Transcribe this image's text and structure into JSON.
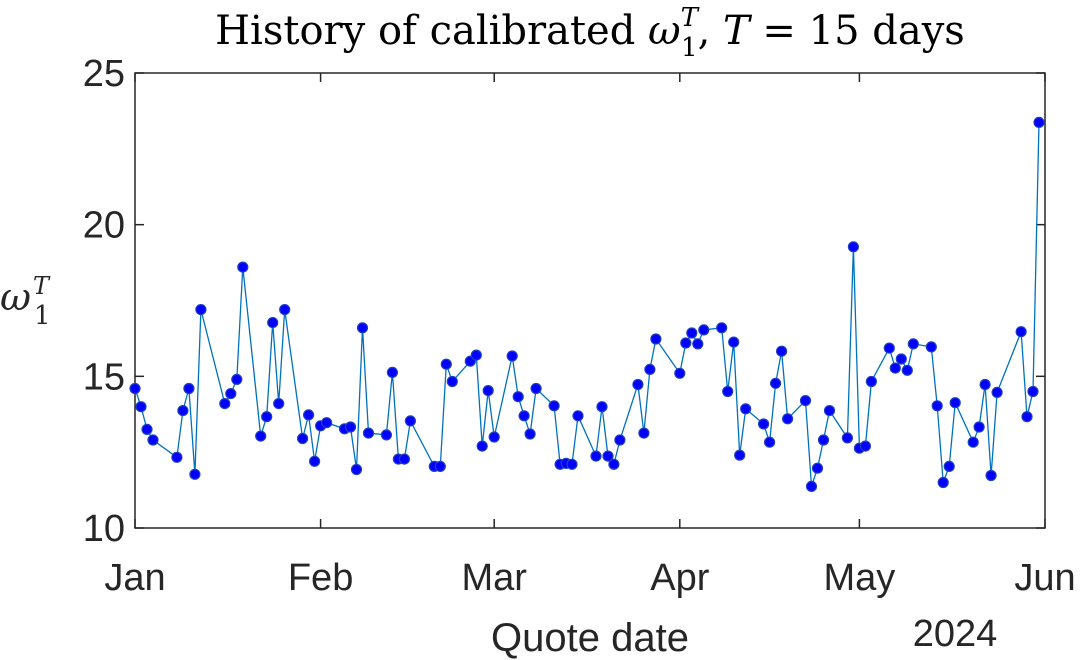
{
  "chart_data": {
    "type": "line",
    "title": "History of calibrated ω₁ᵀ, T = 15 days",
    "title_parts": {
      "prefix": "History of calibrated ",
      "symbol": "ω",
      "symbol_sub": "1",
      "symbol_sup": "T",
      "middle": ", ",
      "var": "T",
      "suffix": " = 15 days"
    },
    "xlabel": "Quote date",
    "ylabel": {
      "symbol": "ω",
      "sub": "1",
      "sup": "T"
    },
    "year_label": "2024",
    "xlim": [
      "2024-01-01",
      "2024-06-01"
    ],
    "ylim": [
      10,
      25
    ],
    "x_ticks": [
      {
        "date": "2024-01-01",
        "label": "Jan"
      },
      {
        "date": "2024-02-01",
        "label": "Feb"
      },
      {
        "date": "2024-03-01",
        "label": "Mar"
      },
      {
        "date": "2024-04-01",
        "label": "Apr"
      },
      {
        "date": "2024-05-01",
        "label": "May"
      },
      {
        "date": "2024-06-01",
        "label": "Jun"
      }
    ],
    "y_ticks": [
      10,
      15,
      20,
      25
    ],
    "grid": false,
    "colors": {
      "line": "#0072BD",
      "marker_fill": "#0000FF",
      "marker_edge": "#1F3FBF"
    },
    "series": [
      {
        "points": [
          [
            "2024-01-01",
            14.6
          ],
          [
            "2024-01-02",
            14.0
          ],
          [
            "2024-01-03",
            13.25
          ],
          [
            "2024-01-04",
            12.9
          ],
          [
            "2024-01-08",
            12.33
          ],
          [
            "2024-01-09",
            13.87
          ],
          [
            "2024-01-10",
            14.6
          ],
          [
            "2024-01-11",
            11.77
          ],
          [
            "2024-01-12",
            17.2
          ],
          [
            "2024-01-16",
            14.1
          ],
          [
            "2024-01-17",
            14.43
          ],
          [
            "2024-01-18",
            14.9
          ],
          [
            "2024-01-19",
            18.6
          ],
          [
            "2024-01-22",
            13.03
          ],
          [
            "2024-01-23",
            13.67
          ],
          [
            "2024-01-24",
            16.77
          ],
          [
            "2024-01-25",
            14.1
          ],
          [
            "2024-01-26",
            17.2
          ],
          [
            "2024-01-29",
            12.95
          ],
          [
            "2024-01-30",
            13.73
          ],
          [
            "2024-01-31",
            12.2
          ],
          [
            "2024-02-01",
            13.37
          ],
          [
            "2024-02-02",
            13.47
          ],
          [
            "2024-02-05",
            13.27
          ],
          [
            "2024-02-06",
            13.33
          ],
          [
            "2024-02-07",
            11.93
          ],
          [
            "2024-02-08",
            16.6
          ],
          [
            "2024-02-09",
            13.13
          ],
          [
            "2024-02-12",
            13.07
          ],
          [
            "2024-02-13",
            15.13
          ],
          [
            "2024-02-14",
            12.27
          ],
          [
            "2024-02-15",
            12.27
          ],
          [
            "2024-02-16",
            13.53
          ],
          [
            "2024-02-20",
            12.03
          ],
          [
            "2024-02-21",
            12.03
          ],
          [
            "2024-02-22",
            15.4
          ],
          [
            "2024-02-23",
            14.83
          ],
          [
            "2024-02-26",
            15.5
          ],
          [
            "2024-02-27",
            15.7
          ],
          [
            "2024-02-28",
            12.7
          ],
          [
            "2024-02-29",
            14.53
          ],
          [
            "2024-03-01",
            13.0
          ],
          [
            "2024-03-04",
            15.67
          ],
          [
            "2024-03-05",
            14.33
          ],
          [
            "2024-03-06",
            13.7
          ],
          [
            "2024-03-07",
            13.1
          ],
          [
            "2024-03-08",
            14.6
          ],
          [
            "2024-03-11",
            14.03
          ],
          [
            "2024-03-12",
            12.1
          ],
          [
            "2024-03-13",
            12.13
          ],
          [
            "2024-03-14",
            12.1
          ],
          [
            "2024-03-15",
            13.7
          ],
          [
            "2024-03-18",
            12.37
          ],
          [
            "2024-03-19",
            14.0
          ],
          [
            "2024-03-20",
            12.37
          ],
          [
            "2024-03-21",
            12.1
          ],
          [
            "2024-03-22",
            12.9
          ],
          [
            "2024-03-25",
            14.73
          ],
          [
            "2024-03-26",
            13.13
          ],
          [
            "2024-03-27",
            15.23
          ],
          [
            "2024-03-28",
            16.23
          ],
          [
            "2024-04-01",
            15.1
          ],
          [
            "2024-04-02",
            16.1
          ],
          [
            "2024-04-03",
            16.43
          ],
          [
            "2024-04-04",
            16.07
          ],
          [
            "2024-04-05",
            16.53
          ],
          [
            "2024-04-08",
            16.6
          ],
          [
            "2024-04-09",
            14.5
          ],
          [
            "2024-04-10",
            16.13
          ],
          [
            "2024-04-11",
            12.4
          ],
          [
            "2024-04-12",
            13.93
          ],
          [
            "2024-04-15",
            13.43
          ],
          [
            "2024-04-16",
            12.83
          ],
          [
            "2024-04-17",
            14.77
          ],
          [
            "2024-04-18",
            15.83
          ],
          [
            "2024-04-19",
            13.6
          ],
          [
            "2024-04-22",
            14.2
          ],
          [
            "2024-04-23",
            11.37
          ],
          [
            "2024-04-24",
            11.97
          ],
          [
            "2024-04-25",
            12.9
          ],
          [
            "2024-04-26",
            13.87
          ],
          [
            "2024-04-29",
            12.97
          ],
          [
            "2024-04-30",
            19.27
          ],
          [
            "2024-05-01",
            12.63
          ],
          [
            "2024-05-02",
            12.7
          ],
          [
            "2024-05-03",
            14.83
          ],
          [
            "2024-05-06",
            15.93
          ],
          [
            "2024-05-07",
            15.27
          ],
          [
            "2024-05-08",
            15.57
          ],
          [
            "2024-05-09",
            15.2
          ],
          [
            "2024-05-10",
            16.07
          ],
          [
            "2024-05-13",
            15.97
          ],
          [
            "2024-05-14",
            14.03
          ],
          [
            "2024-05-15",
            11.5
          ],
          [
            "2024-05-16",
            12.03
          ],
          [
            "2024-05-17",
            14.13
          ],
          [
            "2024-05-20",
            12.83
          ],
          [
            "2024-05-21",
            13.33
          ],
          [
            "2024-05-22",
            14.73
          ],
          [
            "2024-05-23",
            11.73
          ],
          [
            "2024-05-24",
            14.47
          ],
          [
            "2024-05-28",
            16.47
          ],
          [
            "2024-05-29",
            13.67
          ],
          [
            "2024-05-30",
            14.5
          ],
          [
            "2024-05-31",
            23.37
          ]
        ]
      }
    ]
  }
}
